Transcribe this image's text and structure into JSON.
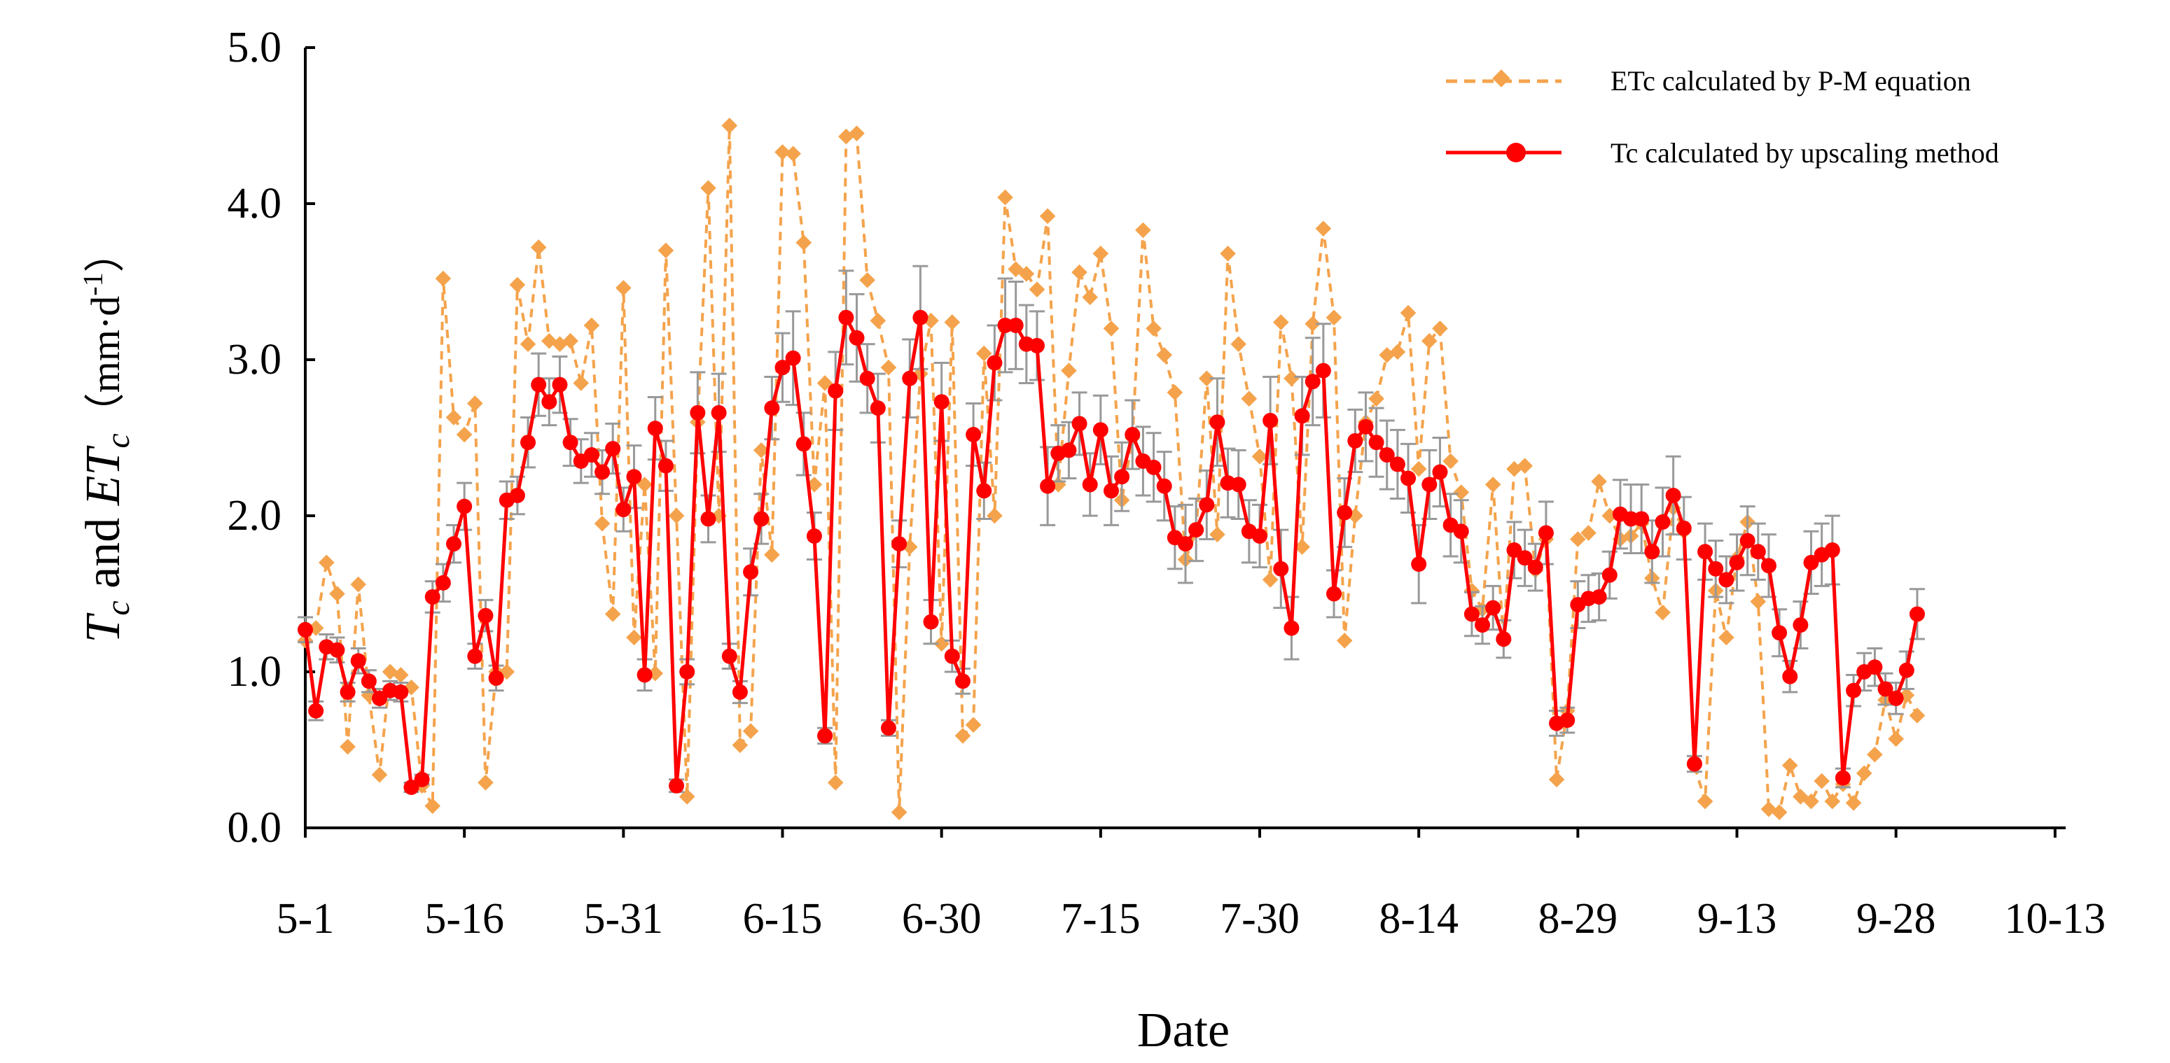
{
  "chart_data": {
    "type": "line",
    "title": "",
    "xlabel": "Date",
    "ylabel": {
      "t": "T",
      "sub1": "c",
      "and": " and ",
      "et": "ET",
      "sub2": "c",
      "units_open": "（mm·d",
      "units_exp": "-1",
      "units_close": "）"
    },
    "ylim": [
      0,
      5
    ],
    "yticks": [
      "0.0",
      "1.0",
      "2.0",
      "3.0",
      "4.0",
      "5.0"
    ],
    "x_day_range": [
      0,
      166
    ],
    "xticks": [
      {
        "day": 0,
        "label": "5-1"
      },
      {
        "day": 15,
        "label": "5-16"
      },
      {
        "day": 30,
        "label": "5-31"
      },
      {
        "day": 45,
        "label": "6-15"
      },
      {
        "day": 60,
        "label": "6-30"
      },
      {
        "day": 75,
        "label": "7-15"
      },
      {
        "day": 90,
        "label": "7-30"
      },
      {
        "day": 105,
        "label": "8-14"
      },
      {
        "day": 120,
        "label": "8-29"
      },
      {
        "day": 135,
        "label": "9-13"
      },
      {
        "day": 150,
        "label": "9-28"
      },
      {
        "day": 165,
        "label": "10-13"
      }
    ],
    "legend_position": "top-right",
    "series": [
      {
        "name": "ETc calculated by P-M equation",
        "style": "dashed-diamond",
        "color": "#F4A34C",
        "values": [
          1.2,
          1.28,
          1.7,
          1.5,
          0.52,
          1.56,
          0.85,
          0.34,
          1.0,
          0.98,
          0.9,
          0.27,
          0.14,
          3.52,
          2.63,
          2.52,
          2.72,
          0.29,
          1.0,
          1.0,
          3.48,
          3.1,
          3.72,
          3.12,
          3.1,
          3.12,
          2.85,
          3.22,
          1.95,
          1.37,
          3.46,
          1.22,
          2.2,
          0.99,
          3.7,
          2.0,
          0.2,
          2.6,
          4.1,
          2.0,
          4.5,
          0.53,
          0.62,
          2.42,
          1.75,
          4.33,
          4.32,
          3.75,
          2.2,
          2.85,
          0.29,
          4.43,
          4.45,
          3.51,
          3.25,
          2.95,
          0.1,
          1.8,
          2.91,
          3.25,
          1.18,
          3.24,
          0.59,
          0.66,
          3.04,
          2.0,
          4.04,
          3.58,
          3.55,
          3.45,
          3.92,
          2.2,
          2.93,
          3.56,
          3.4,
          3.68,
          3.2,
          2.1,
          2.5,
          3.83,
          3.2,
          3.03,
          2.79,
          1.72,
          1.9,
          2.88,
          1.88,
          3.68,
          3.1,
          2.75,
          2.38,
          1.59,
          3.24,
          2.88,
          1.8,
          3.23,
          3.84,
          3.27,
          1.2,
          2.0,
          2.6,
          2.75,
          3.03,
          3.05,
          3.3,
          2.3,
          3.12,
          3.2,
          2.35,
          2.15,
          1.52,
          1.4,
          2.2,
          1.2,
          2.3,
          2.32,
          1.65,
          1.85,
          0.31,
          0.75,
          1.85,
          1.89,
          2.22,
          2.0,
          1.85,
          1.87,
          1.95,
          1.6,
          1.38,
          2.05,
          1.9,
          0.4,
          0.17,
          1.52,
          1.22,
          1.73,
          1.96,
          1.45,
          0.12,
          0.1,
          0.4,
          0.2,
          0.17,
          0.3,
          0.17,
          0.28,
          0.16,
          0.35,
          0.47,
          0.82,
          0.57,
          0.85,
          0.72
        ]
      },
      {
        "name": "Tc calculated by upscaling method",
        "style": "solid-circle",
        "color": "#FF0000",
        "values": [
          1.27,
          0.75,
          1.16,
          1.14,
          0.87,
          1.07,
          0.94,
          0.83,
          0.88,
          0.87,
          0.26,
          0.31,
          1.48,
          1.57,
          1.82,
          2.06,
          1.1,
          1.36,
          0.96,
          2.1,
          2.13,
          2.47,
          2.84,
          2.73,
          2.84,
          2.47,
          2.35,
          2.39,
          2.28,
          2.43,
          2.04,
          2.25,
          0.98,
          2.56,
          2.32,
          0.27,
          1.0,
          2.66,
          1.98,
          2.66,
          1.1,
          0.87,
          1.64,
          1.98,
          2.69,
          2.95,
          3.01,
          2.46,
          1.87,
          0.59,
          2.8,
          3.27,
          3.14,
          2.88,
          2.69,
          0.64,
          1.82,
          2.88,
          3.27,
          1.32,
          2.73,
          1.1,
          0.94,
          2.52,
          2.16,
          2.98,
          3.22,
          3.22,
          3.1,
          3.09,
          2.19,
          2.4,
          2.42,
          2.59,
          2.2,
          2.55,
          2.16,
          2.25,
          2.52,
          2.35,
          2.31,
          2.19,
          1.86,
          1.82,
          1.91,
          2.07,
          2.6,
          2.21,
          2.2,
          1.9,
          1.87,
          2.61,
          1.66,
          1.28,
          2.64,
          2.86,
          2.93,
          1.5,
          2.02,
          2.48,
          2.57,
          2.47,
          2.39,
          2.33,
          2.24,
          1.69,
          2.2,
          2.28,
          1.94,
          1.9,
          1.37,
          1.3,
          1.41,
          1.21,
          1.78,
          1.73,
          1.67,
          1.89,
          0.67,
          0.69,
          1.43,
          1.47,
          1.48,
          1.62,
          2.01,
          1.98,
          1.98,
          1.77,
          1.96,
          2.13,
          1.92,
          0.41,
          1.77,
          1.66,
          1.59,
          1.7,
          1.84,
          1.77,
          1.68,
          1.25,
          0.97,
          1.3,
          1.7,
          1.75,
          1.78,
          0.32,
          0.88,
          1.0,
          1.03,
          0.89,
          0.83,
          1.01,
          1.37
        ],
        "error": [
          0.08,
          0.06,
          0.08,
          0.08,
          0.06,
          0.08,
          0.07,
          0.06,
          0.06,
          0.06,
          0.03,
          0.03,
          0.1,
          0.12,
          0.12,
          0.15,
          0.08,
          0.1,
          0.08,
          0.12,
          0.12,
          0.16,
          0.2,
          0.15,
          0.18,
          0.15,
          0.14,
          0.14,
          0.14,
          0.16,
          0.14,
          0.2,
          0.1,
          0.2,
          0.16,
          0.04,
          0.08,
          0.26,
          0.15,
          0.25,
          0.08,
          0.07,
          0.15,
          0.16,
          0.2,
          0.22,
          0.3,
          0.2,
          0.15,
          0.05,
          0.25,
          0.3,
          0.28,
          0.22,
          0.22,
          0.05,
          0.15,
          0.25,
          0.33,
          0.14,
          0.25,
          0.1,
          0.08,
          0.2,
          0.18,
          0.24,
          0.3,
          0.28,
          0.25,
          0.22,
          0.25,
          0.18,
          0.18,
          0.2,
          0.2,
          0.22,
          0.22,
          0.22,
          0.22,
          0.22,
          0.22,
          0.22,
          0.2,
          0.25,
          0.2,
          0.22,
          0.28,
          0.22,
          0.22,
          0.2,
          0.2,
          0.28,
          0.25,
          0.2,
          0.25,
          0.28,
          0.3,
          0.15,
          0.22,
          0.2,
          0.22,
          0.22,
          0.22,
          0.22,
          0.22,
          0.25,
          0.22,
          0.22,
          0.2,
          0.2,
          0.14,
          0.12,
          0.14,
          0.12,
          0.18,
          0.18,
          0.15,
          0.2,
          0.08,
          0.08,
          0.15,
          0.15,
          0.15,
          0.15,
          0.22,
          0.22,
          0.22,
          0.2,
          0.22,
          0.25,
          0.2,
          0.05,
          0.18,
          0.18,
          0.15,
          0.18,
          0.22,
          0.18,
          0.2,
          0.15,
          0.1,
          0.15,
          0.2,
          0.2,
          0.22,
          0.06,
          0.1,
          0.12,
          0.12,
          0.1,
          0.1,
          0.12,
          0.16
        ]
      }
    ]
  }
}
